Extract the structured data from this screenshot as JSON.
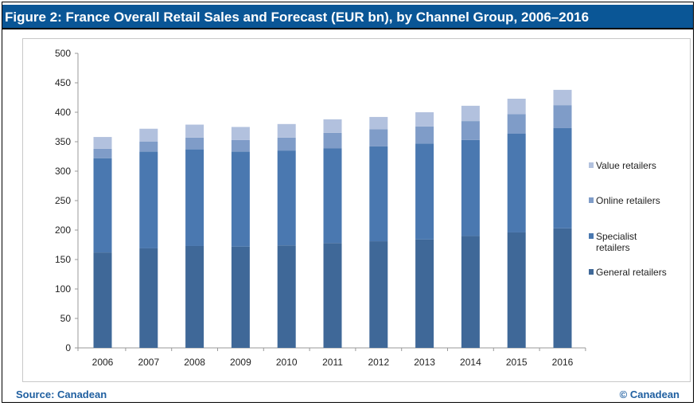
{
  "title": "Figure 2: France Overall Retail Sales and Forecast (EUR bn), by Channel Group, 2006–2016",
  "footer": {
    "source": "Source: Canadean",
    "copyright": "© Canadean"
  },
  "chart_data": {
    "type": "bar",
    "stacked": true,
    "title": "Figure 2: France Overall Retail Sales and Forecast (EUR bn), by Channel Group, 2006–2016",
    "xlabel": "",
    "ylabel": "",
    "ylim": [
      0,
      500
    ],
    "yticks": [
      0,
      50,
      100,
      150,
      200,
      250,
      300,
      350,
      400,
      450,
      500
    ],
    "grid": false,
    "legend_position": "right",
    "categories": [
      "2006",
      "2007",
      "2008",
      "2009",
      "2010",
      "2011",
      "2012",
      "2013",
      "2014",
      "2015",
      "2016"
    ],
    "series": [
      {
        "name": "General retailers",
        "color": "#3f6898",
        "values": [
          162,
          169,
          173,
          172,
          174,
          178,
          181,
          184,
          190,
          196,
          203
        ]
      },
      {
        "name": "Specialist retailers",
        "color": "#4a78b0",
        "values": [
          160,
          164,
          164,
          161,
          161,
          161,
          161,
          163,
          163,
          168,
          170
        ]
      },
      {
        "name": "Online retailers",
        "color": "#7f9cc8",
        "values": [
          16,
          17,
          20,
          20,
          22,
          26,
          29,
          29,
          32,
          33,
          39
        ]
      },
      {
        "name": "Value retailers",
        "color": "#b2c1de",
        "values": [
          20,
          22,
          22,
          22,
          23,
          23,
          21,
          24,
          26,
          26,
          26
        ]
      }
    ]
  }
}
